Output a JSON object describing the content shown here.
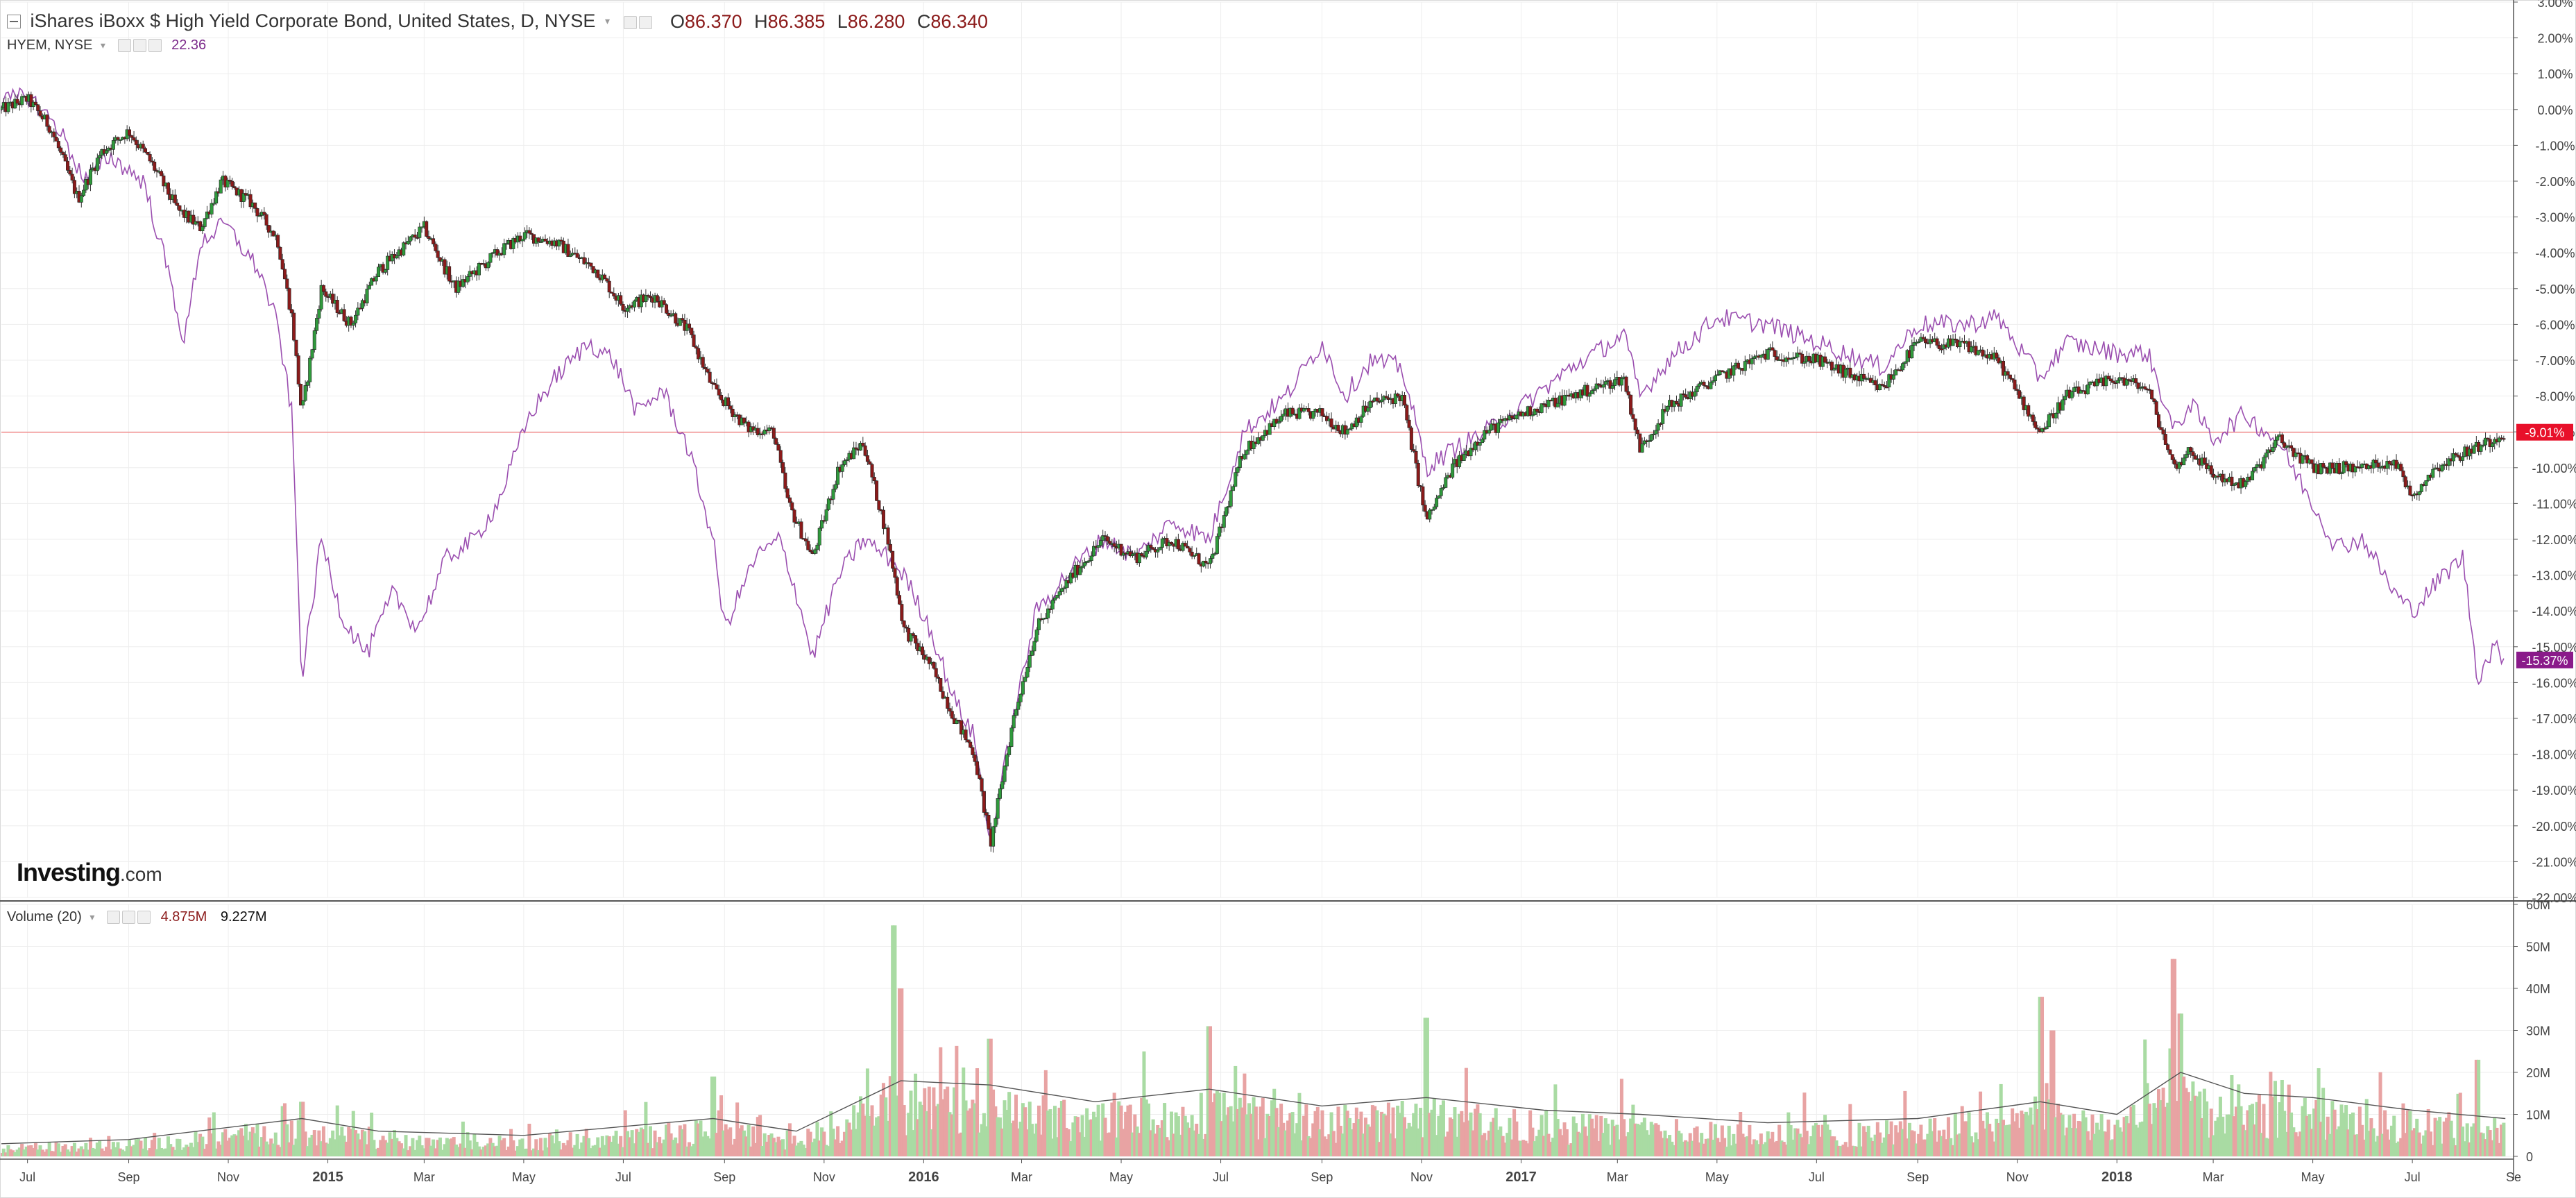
{
  "legend": {
    "main_title": "iShares iBoxx $ High Yield Corporate Bond, United States, D, NYSE",
    "ohlc": [
      {
        "key": "O",
        "value": "86.370"
      },
      {
        "key": "H",
        "value": "86.385"
      },
      {
        "key": "L",
        "value": "86.280"
      },
      {
        "key": "C",
        "value": "86.340"
      }
    ],
    "compare_name": "HYEM, NYSE",
    "compare_value": "22.36",
    "volume_name": "Volume (20)",
    "volume_value": "4.875M",
    "volume_ma_value": "9.227M"
  },
  "logo": {
    "main": "Investing",
    "suffix": ".com"
  },
  "colors": {
    "up": "#2f9a3c",
    "down": "#8b1a1a",
    "compare": "#9b4fb0",
    "baseline": "#f08080",
    "vol_up": "#a9dba3",
    "vol_down": "#e8a3a3",
    "vol_ma": "#555555",
    "grid": "#eeeeee"
  },
  "chart_data": {
    "type": "line",
    "price_axis": {
      "unit": "%",
      "range": [
        -22,
        3
      ],
      "ticks": [
        "3.00%",
        "2.00%",
        "1.00%",
        "0.00%",
        "-1.00%",
        "-2.00%",
        "-3.00%",
        "-4.00%",
        "-5.00%",
        "-6.00%",
        "-7.00%",
        "-8.00%",
        "-9.00%",
        "-10.00%",
        "-11.00%",
        "-12.00%",
        "-13.00%",
        "-14.00%",
        "-15.00%",
        "-16.00%",
        "-17.00%",
        "-18.00%",
        "-19.00%",
        "-20.00%",
        "-21.00%",
        "-22.00%"
      ],
      "tick_values": [
        3,
        2,
        1,
        0,
        -1,
        -2,
        -3,
        -4,
        -5,
        -6,
        -7,
        -8,
        -9,
        -10,
        -11,
        -12,
        -13,
        -14,
        -15,
        -16,
        -17,
        -18,
        -19,
        -20,
        -21,
        -22
      ]
    },
    "volume_axis": {
      "range": [
        0,
        60
      ],
      "ticks": [
        "60M",
        "50M",
        "40M",
        "30M",
        "20M",
        "10M",
        "0"
      ],
      "tick_values": [
        60,
        50,
        40,
        30,
        20,
        10,
        0
      ]
    },
    "time_axis": {
      "range": [
        "2014-06-15",
        "2018-09-01"
      ],
      "labels": [
        "Jul",
        "Sep",
        "Nov",
        "2015",
        "Mar",
        "May",
        "Jul",
        "Sep",
        "Nov",
        "2016",
        "Mar",
        "May",
        "Jul",
        "Sep",
        "Nov",
        "2017",
        "Mar",
        "May",
        "Jul",
        "Sep",
        "Nov",
        "2018",
        "Mar",
        "May",
        "Jul",
        "Se"
      ],
      "dates": [
        "2014-07-01",
        "2014-09-01",
        "2014-11-01",
        "2015-01-01",
        "2015-03-01",
        "2015-05-01",
        "2015-07-01",
        "2015-09-01",
        "2015-11-01",
        "2016-01-01",
        "2016-03-01",
        "2016-05-01",
        "2016-07-01",
        "2016-09-01",
        "2016-11-01",
        "2017-01-01",
        "2017-03-01",
        "2017-05-01",
        "2017-07-01",
        "2017-09-01",
        "2017-11-01",
        "2018-01-01",
        "2018-03-01",
        "2018-05-01",
        "2018-07-01",
        "2018-09-01"
      ],
      "bold": [
        "2015",
        "2016",
        "2017",
        "2018"
      ]
    },
    "series": [
      {
        "name": "iShares iBoxx $ High Yield Corporate Bond",
        "style": "candles",
        "points": [
          [
            "2014-06-15",
            0
          ],
          [
            "2014-07-01",
            0.3
          ],
          [
            "2014-07-15",
            -0.5
          ],
          [
            "2014-08-01",
            -2.5
          ],
          [
            "2014-08-15",
            -1.2
          ],
          [
            "2014-09-01",
            -0.6
          ],
          [
            "2014-09-15",
            -1.5
          ],
          [
            "2014-10-01",
            -2.8
          ],
          [
            "2014-10-15",
            -3.3
          ],
          [
            "2014-10-28",
            -2.0
          ],
          [
            "2014-11-15",
            -2.6
          ],
          [
            "2014-12-01",
            -3.6
          ],
          [
            "2014-12-10",
            -5.8
          ],
          [
            "2014-12-16",
            -8.5
          ],
          [
            "2014-12-28",
            -5.0
          ],
          [
            "2015-01-15",
            -6.0
          ],
          [
            "2015-02-01",
            -4.5
          ],
          [
            "2015-03-01",
            -3.3
          ],
          [
            "2015-03-20",
            -5.0
          ],
          [
            "2015-04-15",
            -4.0
          ],
          [
            "2015-05-01",
            -3.5
          ],
          [
            "2015-05-20",
            -3.7
          ],
          [
            "2015-06-15",
            -4.5
          ],
          [
            "2015-07-01",
            -5.5
          ],
          [
            "2015-07-20",
            -5.2
          ],
          [
            "2015-08-10",
            -6.2
          ],
          [
            "2015-08-25",
            -7.8
          ],
          [
            "2015-09-15",
            -8.9
          ],
          [
            "2015-10-01",
            -9.0
          ],
          [
            "2015-10-10",
            -11.0
          ],
          [
            "2015-10-25",
            -12.5
          ],
          [
            "2015-11-10",
            -10.0
          ],
          [
            "2015-11-25",
            -9.3
          ],
          [
            "2015-12-10",
            -12.0
          ],
          [
            "2015-12-20",
            -14.5
          ],
          [
            "2016-01-05",
            -15.5
          ],
          [
            "2016-01-20",
            -17.0
          ],
          [
            "2016-02-01",
            -18.0
          ],
          [
            "2016-02-11",
            -20.5
          ],
          [
            "2016-02-25",
            -17.0
          ],
          [
            "2016-03-10",
            -14.5
          ],
          [
            "2016-04-01",
            -13.0
          ],
          [
            "2016-04-20",
            -12.0
          ],
          [
            "2016-05-10",
            -12.5
          ],
          [
            "2016-06-01",
            -12.0
          ],
          [
            "2016-06-24",
            -12.8
          ],
          [
            "2016-07-15",
            -9.5
          ],
          [
            "2016-08-10",
            -8.5
          ],
          [
            "2016-09-01",
            -8.5
          ],
          [
            "2016-09-15",
            -9.0
          ],
          [
            "2016-10-01",
            -8.2
          ],
          [
            "2016-10-20",
            -8.0
          ],
          [
            "2016-11-04",
            -11.5
          ],
          [
            "2016-11-20",
            -10.0
          ],
          [
            "2016-12-10",
            -9.0
          ],
          [
            "2017-01-01",
            -8.5
          ],
          [
            "2017-02-01",
            -8.0
          ],
          [
            "2017-03-05",
            -7.5
          ],
          [
            "2017-03-15",
            -9.5
          ],
          [
            "2017-04-01",
            -8.3
          ],
          [
            "2017-05-01",
            -7.5
          ],
          [
            "2017-06-01",
            -6.8
          ],
          [
            "2017-07-01",
            -7.0
          ],
          [
            "2017-08-10",
            -7.8
          ],
          [
            "2017-09-01",
            -6.5
          ],
          [
            "2017-10-01",
            -6.6
          ],
          [
            "2017-10-20",
            -7.0
          ],
          [
            "2017-11-15",
            -9.0
          ],
          [
            "2017-12-01",
            -8.0
          ],
          [
            "2018-01-01",
            -7.5
          ],
          [
            "2018-01-20",
            -7.8
          ],
          [
            "2018-02-05",
            -10.0
          ],
          [
            "2018-02-15",
            -9.5
          ],
          [
            "2018-03-01",
            -10.2
          ],
          [
            "2018-03-20",
            -10.5
          ],
          [
            "2018-04-10",
            -9.2
          ],
          [
            "2018-05-01",
            -10.0
          ],
          [
            "2018-06-01",
            -10.0
          ],
          [
            "2018-06-20",
            -9.8
          ],
          [
            "2018-07-01",
            -10.8
          ],
          [
            "2018-07-15",
            -10.0
          ],
          [
            "2018-08-01",
            -9.6
          ],
          [
            "2018-08-20",
            -9.2
          ],
          [
            "2018-08-27",
            -9.01
          ]
        ],
        "last_label": "-9.01%"
      },
      {
        "name": "HYEM, NYSE",
        "style": "line",
        "points": [
          [
            "2014-06-15",
            0.2
          ],
          [
            "2014-07-01",
            0.4
          ],
          [
            "2014-07-20",
            -0.5
          ],
          [
            "2014-08-05",
            -2.0
          ],
          [
            "2014-08-20",
            -1.3
          ],
          [
            "2014-09-10",
            -2.0
          ],
          [
            "2014-09-25",
            -4.5
          ],
          [
            "2014-10-05",
            -6.5
          ],
          [
            "2014-10-15",
            -3.7
          ],
          [
            "2014-10-30",
            -3.2
          ],
          [
            "2014-11-20",
            -4.5
          ],
          [
            "2014-12-01",
            -6.0
          ],
          [
            "2014-12-10",
            -8.5
          ],
          [
            "2014-12-16",
            -15.9
          ],
          [
            "2014-12-28",
            -12.0
          ],
          [
            "2015-01-10",
            -14.2
          ],
          [
            "2015-01-25",
            -15.2
          ],
          [
            "2015-02-10",
            -13.5
          ],
          [
            "2015-02-25",
            -14.5
          ],
          [
            "2015-03-15",
            -12.5
          ],
          [
            "2015-04-01",
            -12.0
          ],
          [
            "2015-04-15",
            -11.0
          ],
          [
            "2015-05-05",
            -8.5
          ],
          [
            "2015-05-20",
            -7.5
          ],
          [
            "2015-06-10",
            -6.5
          ],
          [
            "2015-06-25",
            -7.0
          ],
          [
            "2015-07-10",
            -8.5
          ],
          [
            "2015-07-25",
            -7.8
          ],
          [
            "2015-08-10",
            -9.5
          ],
          [
            "2015-08-25",
            -12.0
          ],
          [
            "2015-09-01",
            -14.5
          ],
          [
            "2015-09-20",
            -12.5
          ],
          [
            "2015-10-05",
            -12.0
          ],
          [
            "2015-10-15",
            -13.5
          ],
          [
            "2015-10-25",
            -15.3
          ],
          [
            "2015-11-10",
            -13.0
          ],
          [
            "2015-11-25",
            -12.0
          ],
          [
            "2015-12-10",
            -12.5
          ],
          [
            "2015-12-20",
            -13.0
          ],
          [
            "2016-01-05",
            -14.5
          ],
          [
            "2016-01-20",
            -16.5
          ],
          [
            "2016-02-01",
            -17.5
          ],
          [
            "2016-02-11",
            -20.5
          ],
          [
            "2016-02-25",
            -17.0
          ],
          [
            "2016-03-10",
            -14.0
          ],
          [
            "2016-04-01",
            -12.8
          ],
          [
            "2016-04-20",
            -12.0
          ],
          [
            "2016-05-10",
            -12.5
          ],
          [
            "2016-06-01",
            -11.5
          ],
          [
            "2016-06-24",
            -12.0
          ],
          [
            "2016-07-15",
            -9.0
          ],
          [
            "2016-08-10",
            -8.0
          ],
          [
            "2016-09-01",
            -6.5
          ],
          [
            "2016-09-15",
            -8.0
          ],
          [
            "2016-10-01",
            -7.0
          ],
          [
            "2016-10-20",
            -7.2
          ],
          [
            "2016-11-04",
            -10.0
          ],
          [
            "2016-11-20",
            -9.5
          ],
          [
            "2016-12-10",
            -9.0
          ],
          [
            "2017-01-01",
            -8.3
          ],
          [
            "2017-02-01",
            -7.2
          ],
          [
            "2017-03-05",
            -6.3
          ],
          [
            "2017-03-15",
            -8.0
          ],
          [
            "2017-04-01",
            -7.0
          ],
          [
            "2017-05-01",
            -5.8
          ],
          [
            "2017-06-01",
            -6.0
          ],
          [
            "2017-07-01",
            -6.5
          ],
          [
            "2017-08-10",
            -7.2
          ],
          [
            "2017-09-01",
            -6.0
          ],
          [
            "2017-10-01",
            -6.0
          ],
          [
            "2017-10-20",
            -5.8
          ],
          [
            "2017-11-15",
            -7.5
          ],
          [
            "2017-12-01",
            -6.5
          ],
          [
            "2018-01-01",
            -6.8
          ],
          [
            "2018-01-20",
            -6.8
          ],
          [
            "2018-02-05",
            -9.0
          ],
          [
            "2018-02-15",
            -8.2
          ],
          [
            "2018-03-01",
            -9.2
          ],
          [
            "2018-03-20",
            -8.5
          ],
          [
            "2018-04-10",
            -9.3
          ],
          [
            "2018-05-01",
            -11.0
          ],
          [
            "2018-05-15",
            -12.2
          ],
          [
            "2018-06-01",
            -12.0
          ],
          [
            "2018-06-20",
            -13.5
          ],
          [
            "2018-07-01",
            -14.0
          ],
          [
            "2018-07-20",
            -13.0
          ],
          [
            "2018-08-01",
            -12.5
          ],
          [
            "2018-08-05",
            -14.0
          ],
          [
            "2018-08-10",
            -15.9
          ],
          [
            "2018-08-20",
            -15.0
          ],
          [
            "2018-08-27",
            -15.37
          ]
        ],
        "last_label": "-15.37%"
      },
      {
        "name": "Volume",
        "style": "bars",
        "baseline_m": 5,
        "spikes_m": [
          [
            "2014-12-16",
            13
          ],
          [
            "2015-08-25",
            19
          ],
          [
            "2015-12-14",
            55
          ],
          [
            "2015-12-18",
            40
          ],
          [
            "2016-02-11",
            28
          ],
          [
            "2016-06-24",
            31
          ],
          [
            "2016-11-04",
            33
          ],
          [
            "2017-11-15",
            38
          ],
          [
            "2017-11-22",
            30
          ],
          [
            "2018-02-05",
            47
          ],
          [
            "2018-02-09",
            34
          ],
          [
            "2018-08-10",
            23
          ]
        ]
      },
      {
        "name": "Volume MA (20)",
        "style": "line",
        "points_m": [
          [
            "2014-06-15",
            3
          ],
          [
            "2014-09-01",
            4
          ],
          [
            "2014-12-16",
            9
          ],
          [
            "2015-02-01",
            6
          ],
          [
            "2015-05-01",
            5
          ],
          [
            "2015-08-25",
            9
          ],
          [
            "2015-10-15",
            6
          ],
          [
            "2015-12-18",
            18
          ],
          [
            "2016-02-11",
            17
          ],
          [
            "2016-04-15",
            13
          ],
          [
            "2016-06-24",
            16
          ],
          [
            "2016-09-01",
            12
          ],
          [
            "2016-11-04",
            14
          ],
          [
            "2017-01-15",
            11
          ],
          [
            "2017-03-15",
            10
          ],
          [
            "2017-06-01",
            8
          ],
          [
            "2017-09-01",
            9
          ],
          [
            "2017-11-15",
            13
          ],
          [
            "2018-01-01",
            10
          ],
          [
            "2018-02-09",
            20
          ],
          [
            "2018-03-20",
            15
          ],
          [
            "2018-05-01",
            14
          ],
          [
            "2018-07-01",
            11
          ],
          [
            "2018-08-27",
            9
          ]
        ]
      }
    ]
  }
}
